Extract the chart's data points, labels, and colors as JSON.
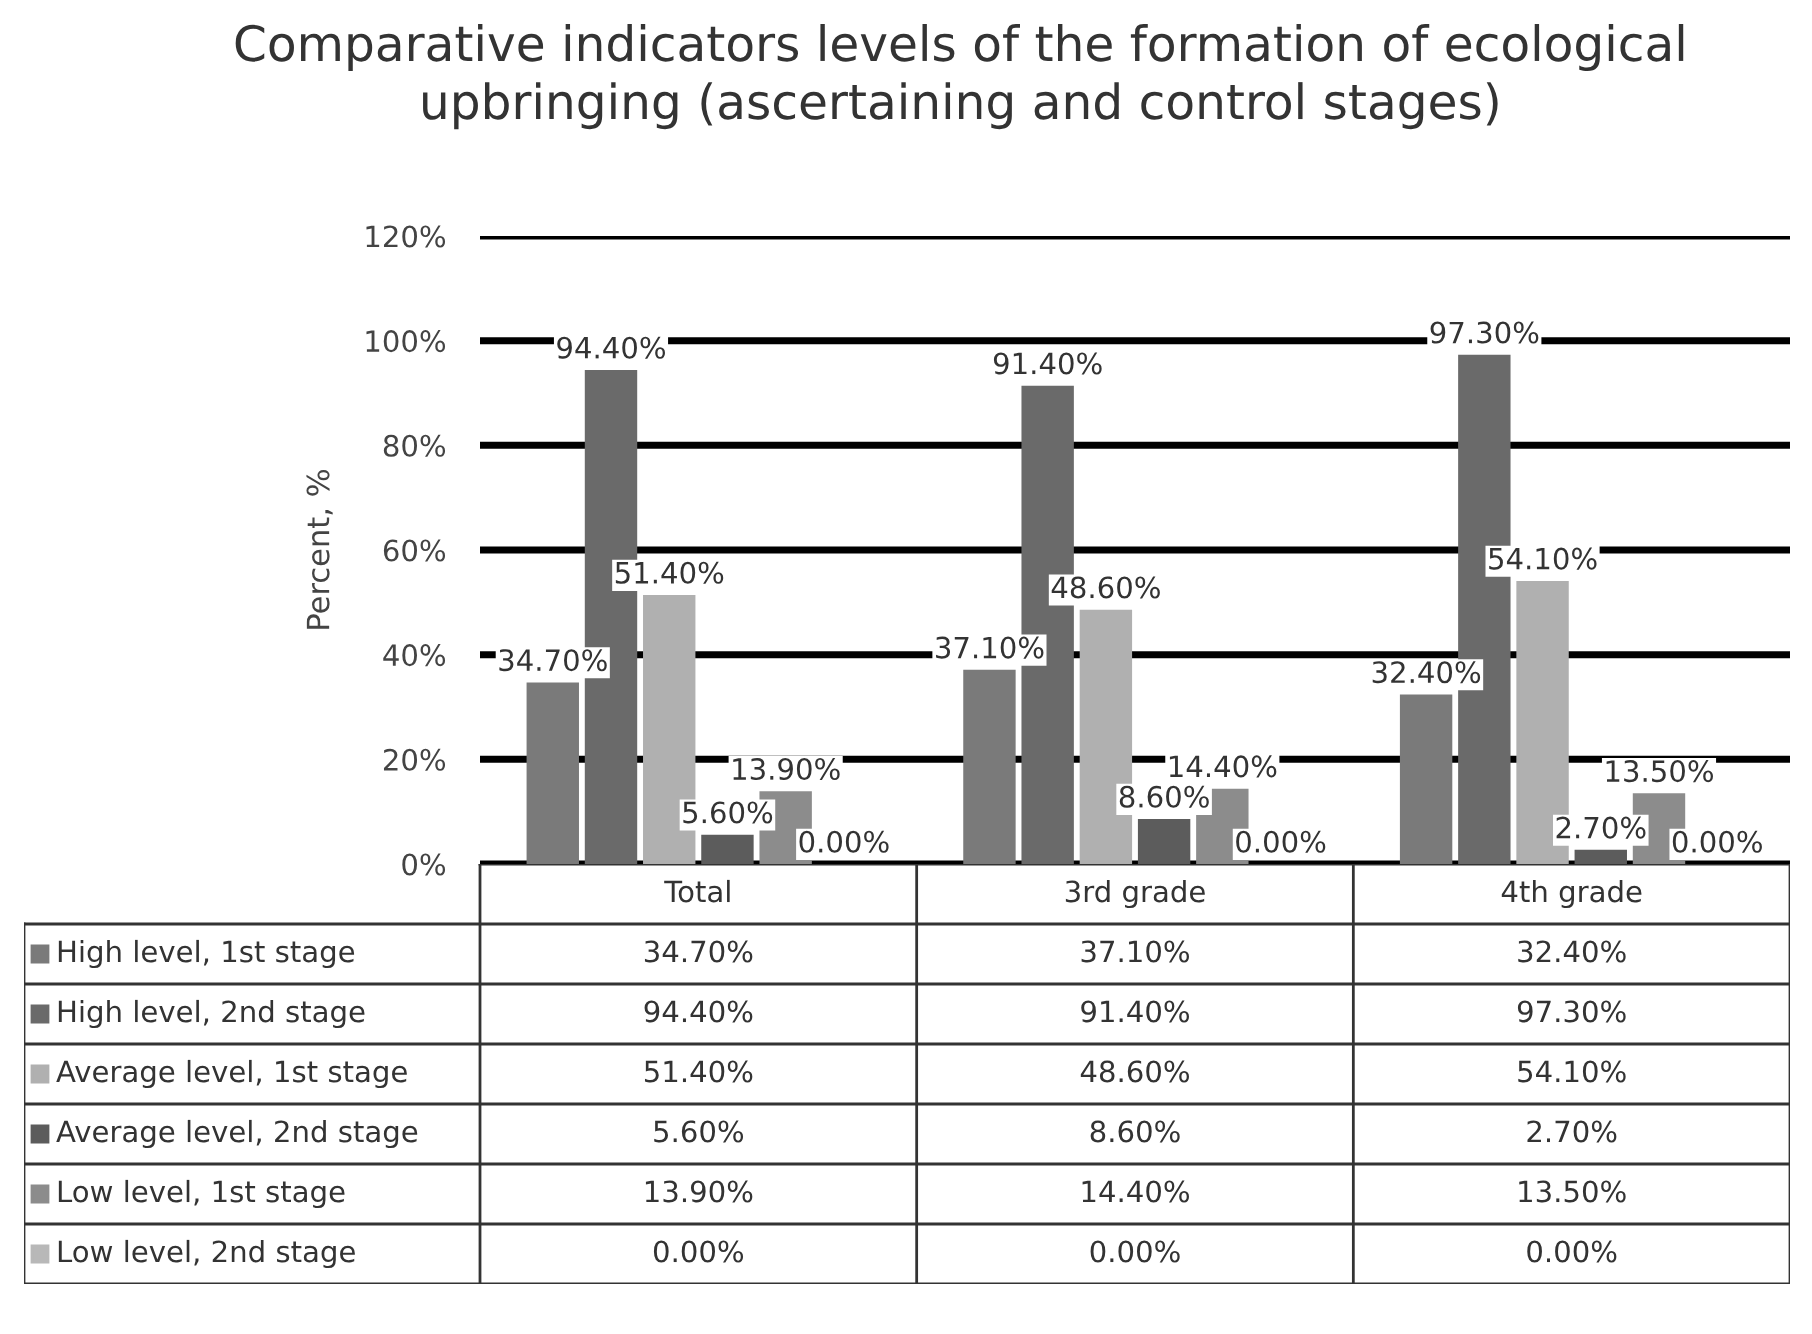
{
  "chart_data": {
    "type": "bar",
    "title": "Comparative indicators levels of the formation of ecological\nupbringing (ascertaining and control stages)",
    "ylabel": "Percent, %",
    "categories": [
      "Total",
      "3rd grade",
      "4th grade"
    ],
    "series": [
      {
        "name": "High level, 1st stage",
        "color": "#7a7a7a",
        "values": [
          34.7,
          37.1,
          32.4
        ],
        "value_labels": [
          "34.70%",
          "37.10%",
          "32.40%"
        ]
      },
      {
        "name": "High level, 2nd stage",
        "color": "#6a6a6a",
        "values": [
          94.4,
          91.4,
          97.3
        ],
        "value_labels": [
          "94.40%",
          "91.40%",
          "97.30%"
        ]
      },
      {
        "name": "Average level, 1st stage",
        "color": "#b0b0b0",
        "values": [
          51.4,
          48.6,
          54.1
        ],
        "value_labels": [
          "51.40%",
          "48.60%",
          "54.10%"
        ]
      },
      {
        "name": "Average level, 2nd stage",
        "color": "#5c5c5c",
        "values": [
          5.6,
          8.6,
          2.7
        ],
        "value_labels": [
          "5.60%",
          "8.60%",
          "2.70%"
        ]
      },
      {
        "name": "Low level, 1st stage",
        "color": "#8c8c8c",
        "values": [
          13.9,
          14.4,
          13.5
        ],
        "value_labels": [
          "13.90%",
          "14.40%",
          "13.50%"
        ]
      },
      {
        "name": "Low level, 2nd stage",
        "color": "#b8b8b8",
        "values": [
          0.0,
          0.0,
          0.0
        ],
        "value_labels": [
          "0.00%",
          "0.00%",
          "0.00%"
        ]
      }
    ],
    "ylim": [
      0,
      120
    ],
    "yticks": [
      {
        "value": 0,
        "label": "0%"
      },
      {
        "value": 20,
        "label": "20%"
      },
      {
        "value": 40,
        "label": "40%"
      },
      {
        "value": 60,
        "label": "60%"
      },
      {
        "value": 80,
        "label": "80%"
      },
      {
        "value": 100,
        "label": "100%"
      },
      {
        "value": 120,
        "label": "120%"
      }
    ],
    "grid": "y",
    "legend": "bottom left"
  }
}
